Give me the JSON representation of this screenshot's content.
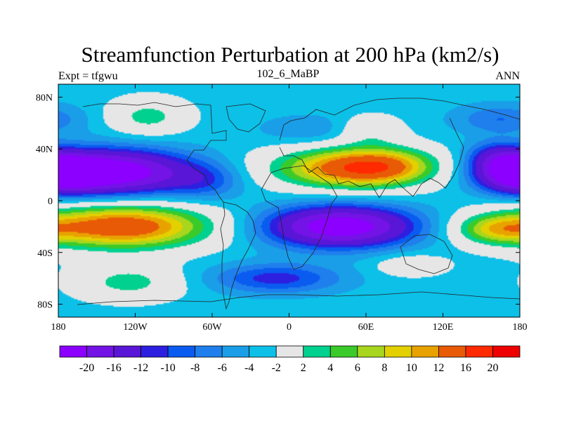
{
  "chart_data": {
    "type": "heatmap",
    "subtype": "filled-contour-map",
    "title": "Streamfunction Perturbation at 200 hPa (km2/s)",
    "left_label": "Expt = tfgwu",
    "center_label": "102_6_MaBP",
    "right_label": "ANN",
    "x_range": [
      -180,
      180
    ],
    "y_range": [
      -90,
      90
    ],
    "x_ticks": [
      {
        "value": -180,
        "label": "180"
      },
      {
        "value": -120,
        "label": "120W"
      },
      {
        "value": -60,
        "label": "60W"
      },
      {
        "value": 0,
        "label": "0"
      },
      {
        "value": 60,
        "label": "60E"
      },
      {
        "value": 120,
        "label": "120E"
      },
      {
        "value": 180,
        "label": "180"
      }
    ],
    "y_ticks": [
      {
        "value": 80,
        "label": "80N"
      },
      {
        "value": 40,
        "label": "40N"
      },
      {
        "value": 0,
        "label": "0"
      },
      {
        "value": -40,
        "label": "40S"
      },
      {
        "value": -80,
        "label": "80S"
      }
    ],
    "contour_levels": [
      -20,
      -16,
      -12,
      -10,
      -8,
      -6,
      -4,
      -2,
      2,
      4,
      6,
      8,
      10,
      12,
      16,
      20
    ],
    "colorbar_labels": [
      "-20",
      "-16",
      "-12",
      "-10",
      "-8",
      "-6",
      "-4",
      "-2",
      "2",
      "4",
      "6",
      "8",
      "10",
      "12",
      "16",
      "20"
    ],
    "colors": [
      "#8b00ff",
      "#7413e6",
      "#5a16d6",
      "#2d1fe0",
      "#0a5bf0",
      "#1f7fec",
      "#1a9ee8",
      "#0cc0e8",
      "#e6e6e6",
      "#00d18e",
      "#3acb2a",
      "#a8d61e",
      "#e3d000",
      "#e8a200",
      "#e85a06",
      "#ff2a00",
      "#ee0000"
    ],
    "field_features": [
      {
        "lon": -135,
        "lat": 22,
        "value": -21,
        "sx": 40,
        "sy": 12
      },
      {
        "lon": 180,
        "lat": 22,
        "value": -20,
        "sx": 22,
        "sy": 10
      },
      {
        "lon": 40,
        "lat": -20,
        "value": -21,
        "sx": 40,
        "sy": 11
      },
      {
        "lon": -130,
        "lat": -20,
        "value": 18,
        "sx": 48,
        "sy": 12
      },
      {
        "lon": 45,
        "lat": 25,
        "value": 15,
        "sx": 42,
        "sy": 11
      },
      {
        "lon": 75,
        "lat": 27,
        "value": 8,
        "sx": 28,
        "sy": 10
      },
      {
        "lon": 62,
        "lat": 55,
        "value": 5,
        "sx": 18,
        "sy": 8
      },
      {
        "lon": -110,
        "lat": 65,
        "value": 6,
        "sx": 22,
        "sy": 10
      },
      {
        "lon": -125,
        "lat": -63,
        "value": 6,
        "sx": 30,
        "sy": 10
      },
      {
        "lon": 160,
        "lat": -22,
        "value": 8,
        "sx": 22,
        "sy": 8
      },
      {
        "lon": -10,
        "lat": -60,
        "value": -8,
        "sx": 35,
        "sy": 8
      },
      {
        "lon": 20,
        "lat": 55,
        "value": -3,
        "sx": 30,
        "sy": 8
      },
      {
        "lon": 165,
        "lat": 63,
        "value": -5,
        "sx": 25,
        "sy": 8
      },
      {
        "lon": -65,
        "lat": 15,
        "value": -5,
        "sx": 20,
        "sy": 10
      },
      {
        "lon": 95,
        "lat": -50,
        "value": 4,
        "sx": 20,
        "sy": 6
      },
      {
        "lon": 160,
        "lat": 35,
        "value": -6,
        "sx": 15,
        "sy": 8
      }
    ],
    "background_level": -3
  }
}
